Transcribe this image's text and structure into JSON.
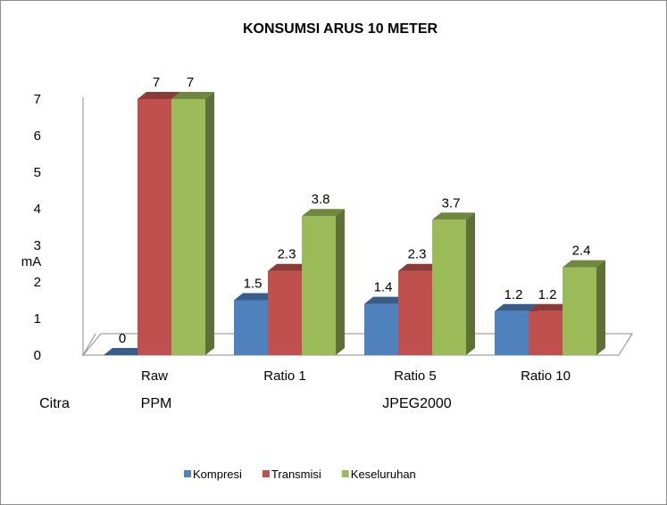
{
  "chart_data": {
    "type": "bar",
    "title": "KONSUMSI ARUS 10 METER",
    "ylabel": "mA",
    "xlabel": "Citra",
    "ylim": [
      0,
      7
    ],
    "yticks": [
      0,
      1,
      2,
      3,
      4,
      5,
      6,
      7
    ],
    "categories": [
      "Raw",
      "Ratio 1",
      "Ratio 5",
      "Ratio 10"
    ],
    "groups": [
      {
        "label": "PPM",
        "categories": [
          "Raw"
        ]
      },
      {
        "label": "JPEG2000",
        "categories": [
          "Ratio 1",
          "Ratio 5",
          "Ratio 10"
        ]
      }
    ],
    "series": [
      {
        "name": "Kompresi",
        "values": [
          0,
          1.5,
          1.4,
          1.2
        ],
        "labels": [
          "0",
          "1.5",
          "1.4",
          "1.2"
        ],
        "color": "#4F81BD"
      },
      {
        "name": "Transmisi",
        "values": [
          7,
          2.3,
          2.3,
          1.2
        ],
        "labels": [
          "7",
          "2.3",
          "2.3",
          "1.2"
        ],
        "color": "#C0504D"
      },
      {
        "name": "Keseluruhan",
        "values": [
          7,
          3.8,
          3.7,
          2.4
        ],
        "labels": [
          "7",
          "3.8",
          "3.7",
          "2.4"
        ],
        "color": "#9BBB59"
      }
    ],
    "grid": false,
    "legend_position": "bottom",
    "projection": "3d-clustered"
  }
}
